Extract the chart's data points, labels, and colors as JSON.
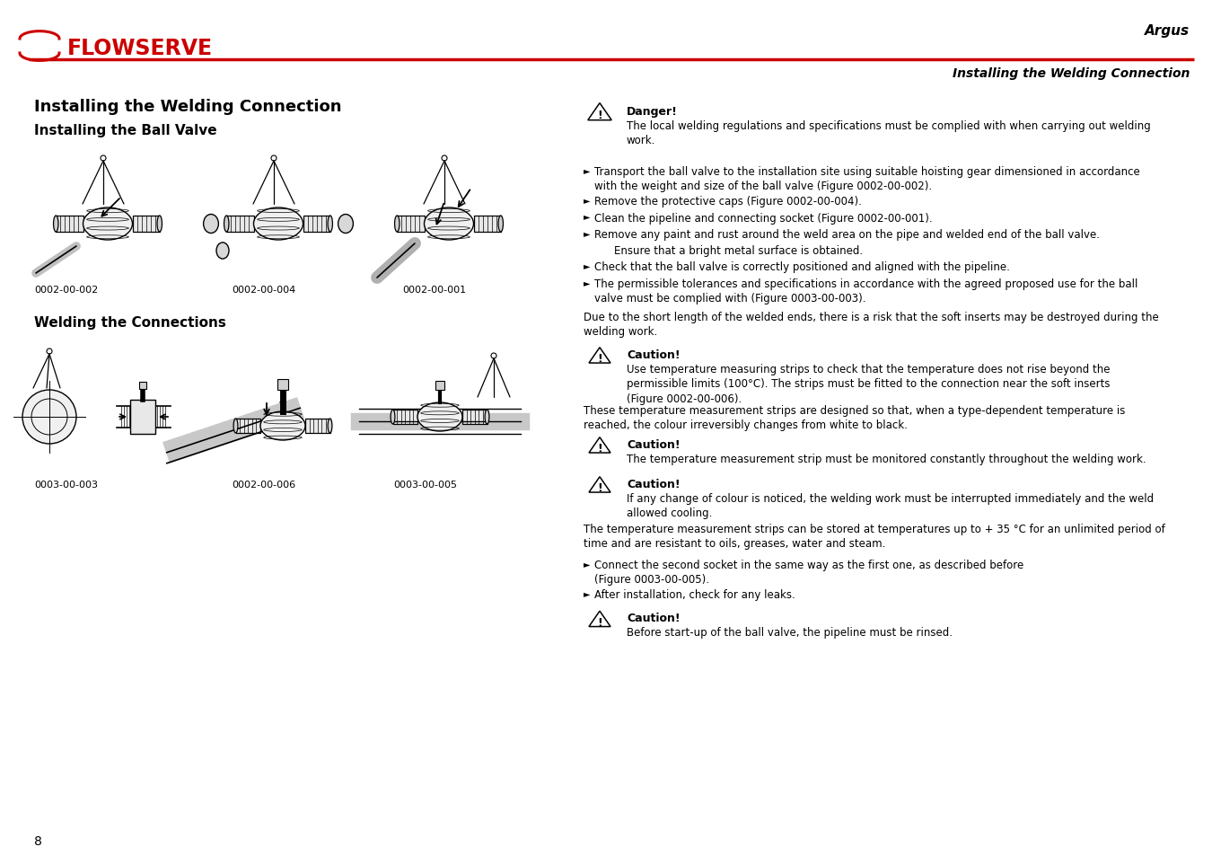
{
  "page_bg": "#ffffff",
  "header_line_color": "#cc0000",
  "brand_color": "#cc0000",
  "title_top_right": "Argus",
  "subtitle_top_right": "Installing the Welding Connection",
  "section1_title": "Installing the Welding Connection",
  "section1_sub": "Installing the Ball Valve",
  "section2_sub": "Welding the Connections",
  "fig_labels": [
    "0002-00-002",
    "0002-00-004",
    "0002-00-001",
    "0003-00-003",
    "0002-00-006",
    "0003-00-005"
  ],
  "page_number": "8",
  "danger_title": "Danger!",
  "danger_text": "The local welding regulations and specifications must be complied with when carrying out welding\nwork.",
  "bullet1": "Transport the ball valve to the installation site using suitable hoisting gear dimensioned in accordance\nwith the weight and size of the ball valve (Figure 0002-00-002).",
  "bullet2": "Remove the protective caps (Figure 0002-00-004).",
  "bullet3": "Clean the pipeline and connecting socket (Figure 0002-00-001).",
  "bullet4": "Remove any paint and rust around the weld area on the pipe and welded end of the ball valve.",
  "bullet4b": "Ensure that a bright metal surface is obtained.",
  "bullet5": "Check that the ball valve is correctly positioned and aligned with the pipeline.",
  "bullet6": "The permissible tolerances and specifications in accordance with the agreed proposed use for the ball\nvalve must be complied with (Figure 0003-00-003).",
  "para1": "Due to the short length of the welded ends, there is a risk that the soft inserts may be destroyed during the\nwelding work.",
  "caution1_title": "Caution!",
  "caution1_text": "Use temperature measuring strips to check that the temperature does not rise beyond the\npermissible limits (100°C). The strips must be fitted to the connection near the soft inserts\n(Figure 0002-00-006).",
  "para2": "These temperature measurement strips are designed so that, when a type-dependent temperature is\nreached, the colour irreversibly changes from white to black.",
  "caution2_title": "Caution!",
  "caution2_text": "The temperature measurement strip must be monitored constantly throughout the welding work.",
  "caution3_title": "Caution!",
  "caution3_text": "If any change of colour is noticed, the welding work must be interrupted immediately and the weld\nallowed cooling.",
  "para3": "The temperature measurement strips can be stored at temperatures up to + 35 °C for an unlimited period of\ntime and are resistant to oils, greases, water and steam.",
  "bullet7": "Connect the second socket in the same way as the first one, as described before\n(Figure 0003-00-005).",
  "bullet8": "After installation, check for any leaks.",
  "caution4_title": "Caution!",
  "caution4_text": "Before start-up of the ball valve, the pipeline must be rinsed."
}
